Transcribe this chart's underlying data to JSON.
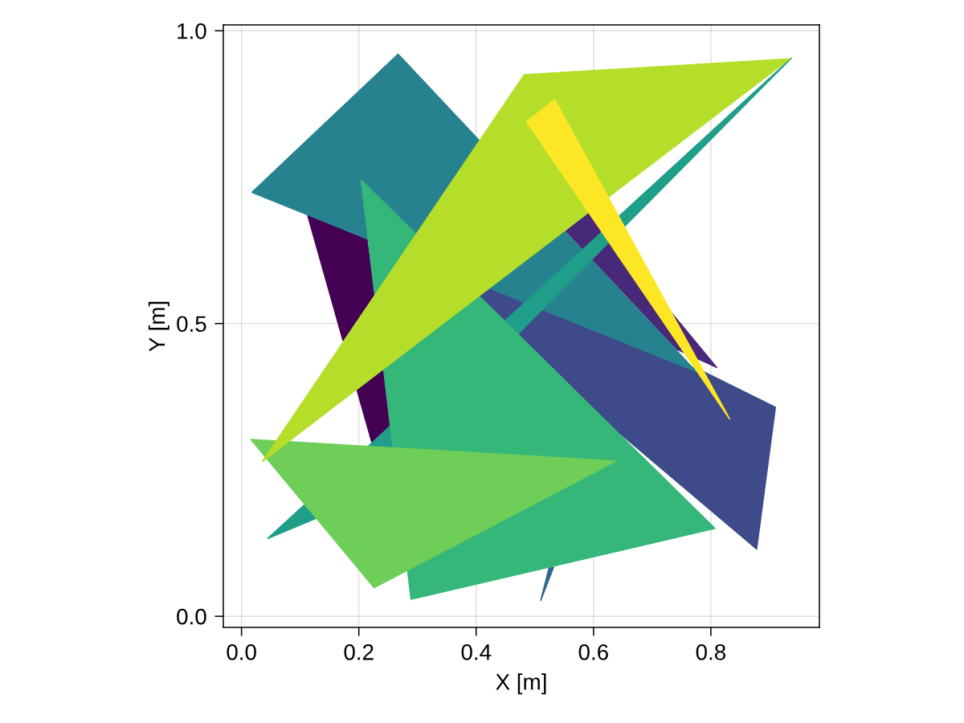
{
  "chart_data": {
    "type": "area",
    "xlabel": "X [m]",
    "ylabel": "Y [m]",
    "xlim": [
      -0.031,
      0.985
    ],
    "ylim": [
      -0.019,
      1.01
    ],
    "xticks": [
      {
        "value": 0,
        "label": "0.0"
      },
      0.2,
      0.4,
      0.6,
      0.8
    ],
    "yticks": [
      {
        "value": 0,
        "label": "0.0"
      },
      0.5,
      {
        "value": 1,
        "label": "1.0"
      }
    ],
    "grid": true,
    "series": [
      {
        "color": "#440154",
        "x": [
          0.113,
          0.214,
          0.226,
          0.173,
          null,
          0.197,
          0.222,
          0.252,
          0.241
        ],
        "values": [
          0.684,
          0.643,
          0.549,
          0.471,
          null,
          0.386,
          0.298,
          0.326,
          0.42
        ]
      },
      {
        "color": "#482878",
        "x": [
          0.81,
          0.592,
          0.553,
          0.742
        ],
        "values": [
          0.425,
          0.689,
          0.658,
          0.456
        ]
      },
      {
        "color": "#3e4a89",
        "x": [
          0.407,
          0.423,
          0.789,
          0.91,
          0.878,
          0.642
        ],
        "values": [
          0.547,
          0.559,
          0.417,
          0.357,
          0.115,
          0.315
        ]
      },
      {
        "color": "#31688e",
        "x": [
          0.51,
          0.532,
          0.524
        ],
        "values": [
          0.027,
          0.084,
          0.082
        ]
      },
      {
        "color": "#26828e",
        "x": [
          0.018,
          0.267,
          0.775
        ],
        "values": [
          0.724,
          0.96,
          0.418
        ]
      },
      {
        "color": "#1f9e89",
        "x": [
          0.045,
          0.937,
          0.472,
          0.126
        ],
        "values": [
          0.133,
          0.953,
          0.483,
          0.167
        ]
      },
      {
        "color": "#35b779",
        "x": [
          0.204,
          0.289,
          0.807
        ],
        "values": [
          0.745,
          0.029,
          0.15
        ]
      },
      {
        "color": "#6ece58",
        "x": [
          0.016,
          0.638,
          0.226
        ],
        "values": [
          0.302,
          0.265,
          0.049
        ]
      },
      {
        "color": "#b5de2b",
        "x": [
          0.036,
          0.482,
          0.934
        ],
        "values": [
          0.265,
          0.925,
          0.952
        ]
      },
      {
        "color": "#fde725",
        "x": [
          0.486,
          0.534,
          0.832
        ],
        "values": [
          0.845,
          0.882,
          0.337
        ]
      }
    ]
  }
}
